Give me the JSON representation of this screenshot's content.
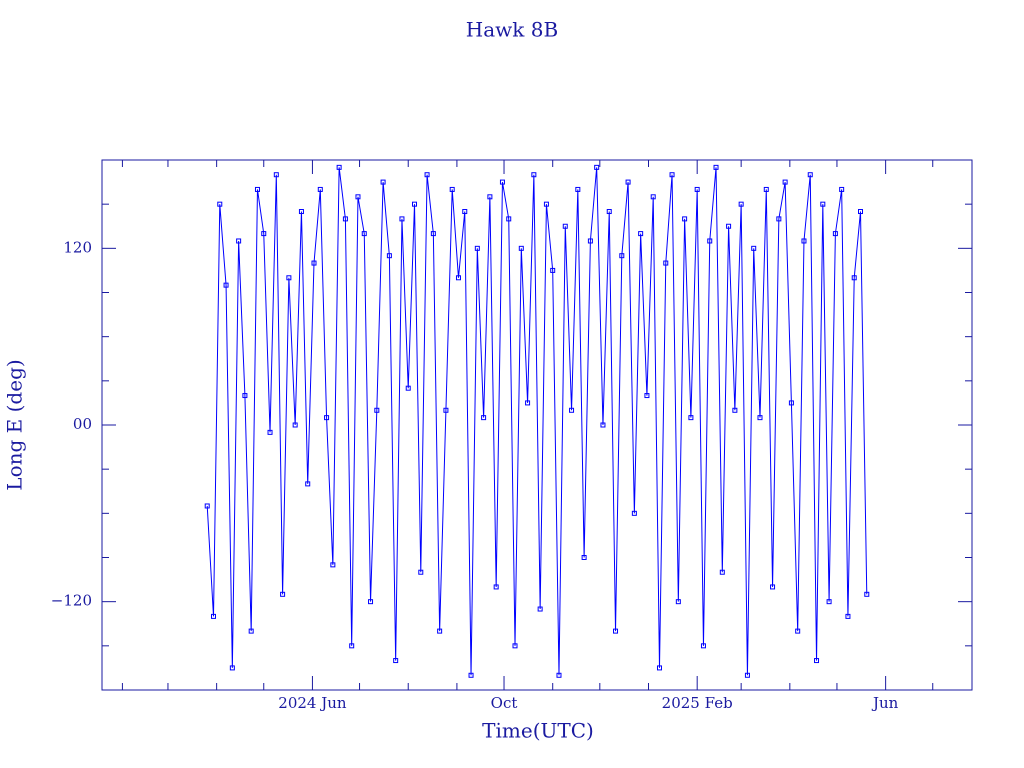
{
  "chart_data": {
    "type": "line",
    "title": "Hawk 8B",
    "xlabel": "Time(UTC)",
    "ylabel": "Long E (deg)",
    "xlim": [
      "2024-01-19",
      "2025-07-26"
    ],
    "ylim": [
      -180,
      180
    ],
    "xticks": [
      {
        "value": "2024-06-01",
        "label": "2024 Jun"
      },
      {
        "value": "2024-10-01",
        "label": "Oct"
      },
      {
        "value": "2025-02-01",
        "label": "2025 Feb"
      },
      {
        "value": "2025-06-01",
        "label": "Jun"
      }
    ],
    "xminorticks": [
      "2024-02-01",
      "2024-03-01",
      "2024-04-01",
      "2024-05-01",
      "2024-07-01",
      "2024-08-01",
      "2024-09-01",
      "2024-11-01",
      "2024-12-01",
      "2025-01-01",
      "2025-03-01",
      "2025-04-01",
      "2025-05-01",
      "2025-07-01"
    ],
    "yticks": [
      {
        "value": -120,
        "label": "−120"
      },
      {
        "value": 0,
        "label": "00"
      },
      120
    ],
    "yminorticks": [
      -150,
      -90,
      -60,
      -30,
      30,
      60,
      90,
      150
    ],
    "series": [
      {
        "name": "Hawk 8B",
        "color": "#0000ff",
        "x": [
          "2024-03-26",
          "2024-03-30",
          "2024-04-03",
          "2024-04-07",
          "2024-04-11",
          "2024-04-15",
          "2024-04-19",
          "2024-04-23",
          "2024-04-27",
          "2024-05-01",
          "2024-05-05",
          "2024-05-09",
          "2024-05-13",
          "2024-05-17",
          "2024-05-21",
          "2024-05-25",
          "2024-05-29",
          "2024-06-02",
          "2024-06-06",
          "2024-06-10",
          "2024-06-14",
          "2024-06-18",
          "2024-06-22",
          "2024-06-26",
          "2024-06-30",
          "2024-07-04",
          "2024-07-08",
          "2024-07-12",
          "2024-07-16",
          "2024-07-20",
          "2024-07-24",
          "2024-07-28",
          "2024-08-01",
          "2024-08-05",
          "2024-08-09",
          "2024-08-13",
          "2024-08-17",
          "2024-08-21",
          "2024-08-25",
          "2024-08-29",
          "2024-09-02",
          "2024-09-06",
          "2024-09-10",
          "2024-09-14",
          "2024-09-18",
          "2024-09-22",
          "2024-09-26",
          "2024-09-30",
          "2024-10-04",
          "2024-10-08",
          "2024-10-12",
          "2024-10-16",
          "2024-10-20",
          "2024-10-24",
          "2024-10-28",
          "2024-11-01",
          "2024-11-05",
          "2024-11-09",
          "2024-11-13",
          "2024-11-17",
          "2024-11-21",
          "2024-11-25",
          "2024-11-29",
          "2024-12-03",
          "2024-12-07",
          "2024-12-11",
          "2024-12-15",
          "2024-12-19",
          "2024-12-23",
          "2024-12-27",
          "2024-12-31",
          "2025-01-04",
          "2025-01-08",
          "2025-01-12",
          "2025-01-16",
          "2025-01-20",
          "2025-01-24",
          "2025-01-28",
          "2025-02-01",
          "2025-02-05",
          "2025-02-09",
          "2025-02-13",
          "2025-02-17",
          "2025-02-21",
          "2025-02-25",
          "2025-03-01",
          "2025-03-05",
          "2025-03-09",
          "2025-03-13",
          "2025-03-17",
          "2025-03-21",
          "2025-03-25",
          "2025-03-29",
          "2025-04-02",
          "2025-04-06",
          "2025-04-10",
          "2025-04-14",
          "2025-04-18",
          "2025-04-22",
          "2025-04-26",
          "2025-04-30",
          "2025-05-04",
          "2025-05-08",
          "2025-05-12",
          "2025-05-16",
          "2025-05-20"
        ],
        "values": [
          -55,
          -130,
          150,
          95,
          -165,
          125,
          20,
          -140,
          160,
          130,
          -5,
          170,
          -115,
          100,
          0,
          145,
          -40,
          110,
          160,
          5,
          -95,
          175,
          140,
          -150,
          155,
          130,
          -120,
          10,
          165,
          115,
          -160,
          140,
          25,
          150,
          -100,
          170,
          130,
          -140,
          10,
          160,
          100,
          145,
          -170,
          120,
          5,
          155,
          -110,
          165,
          140,
          -150,
          120,
          15,
          170,
          -125,
          150,
          105,
          -170,
          135,
          10,
          160,
          -90,
          125,
          175,
          0,
          145,
          -140,
          115,
          165,
          -60,
          130,
          20,
          155,
          -165,
          110,
          170,
          -120,
          140,
          5,
          160,
          -150,
          125,
          175,
          -100,
          135,
          10,
          150,
          -170,
          120,
          5,
          160,
          -110,
          140,
          165,
          15,
          -140,
          125,
          170,
          -160,
          150,
          -120,
          130,
          160,
          -130,
          100,
          145,
          -115
        ]
      }
    ]
  }
}
